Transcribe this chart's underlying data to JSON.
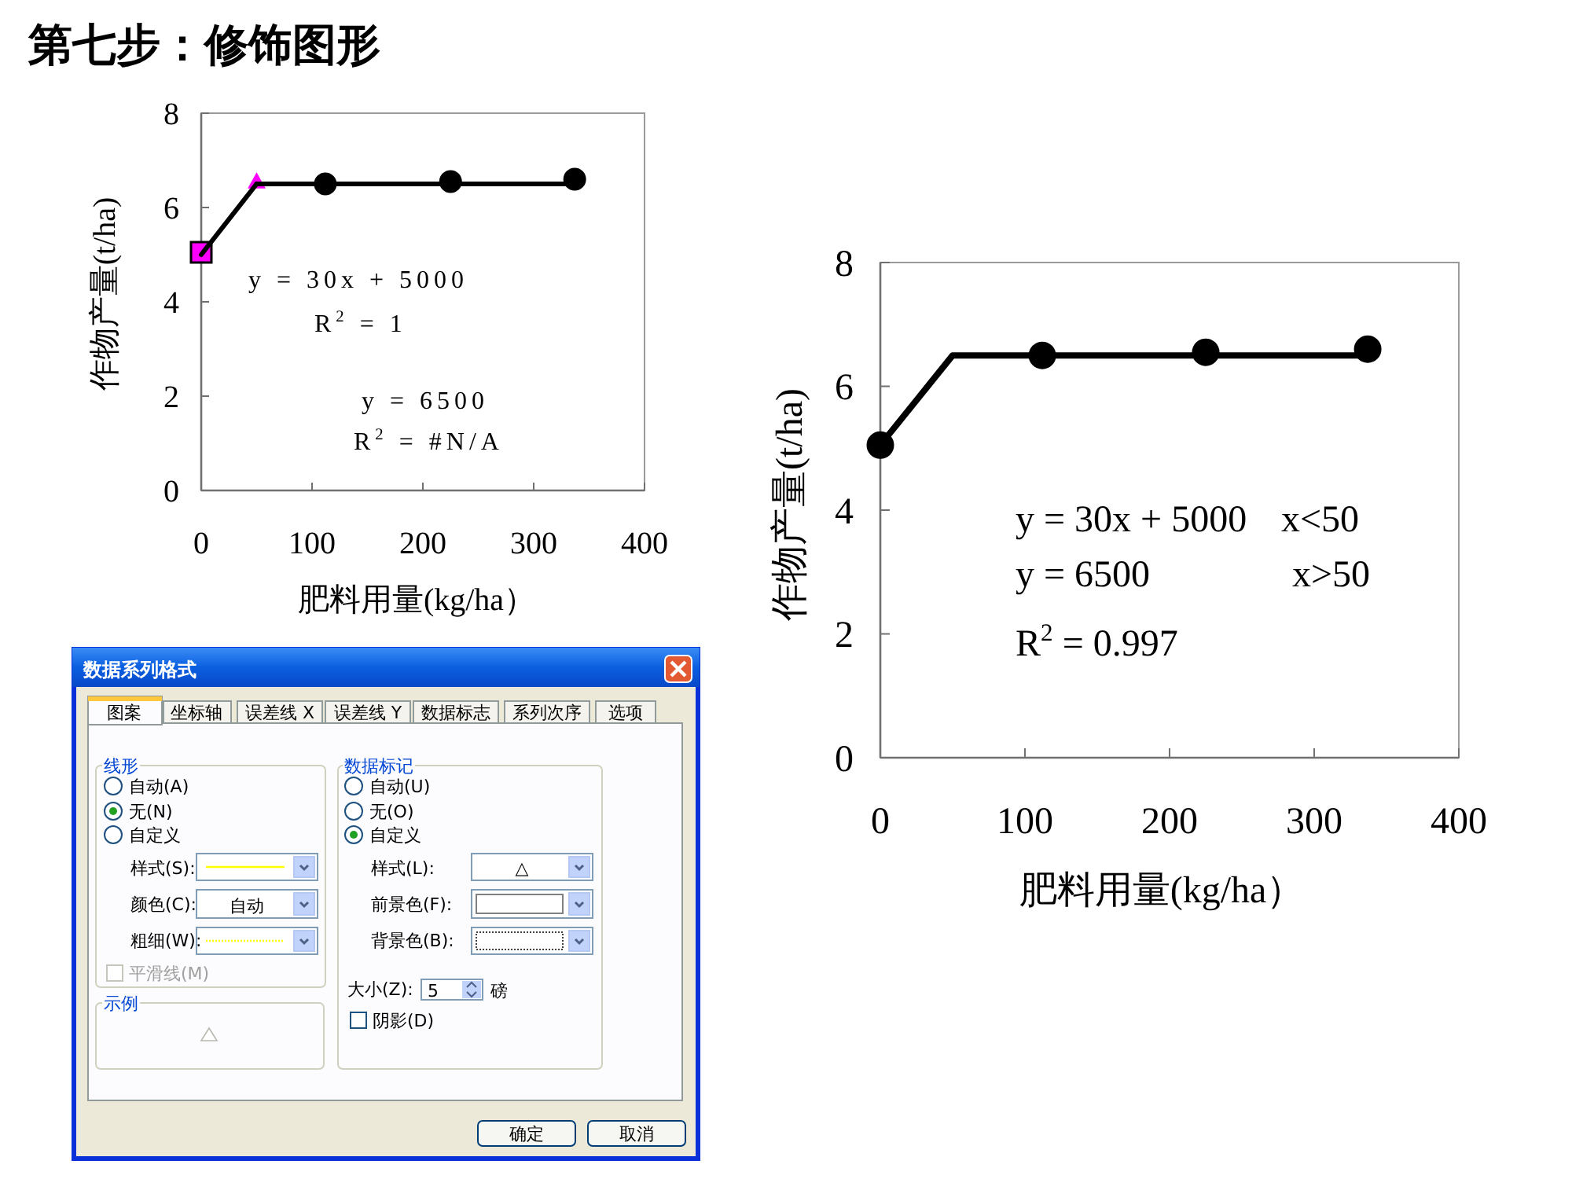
{
  "chart_data": [
    {
      "type": "line",
      "title": "第七步：修饰图形",
      "xlabel": "肥料用量(kg/ha）",
      "ylabel": "作物产量(t/ha)",
      "xlim": [
        0,
        400
      ],
      "ylim": [
        0,
        8
      ],
      "xticks": [
        0,
        100,
        200,
        300,
        400
      ],
      "yticks": [
        0,
        2,
        4,
        6,
        8
      ],
      "series": [
        {
          "type": "scatter",
          "color": "#ff00ff",
          "marker": "square",
          "x": [
            0
          ],
          "values": [
            5.05
          ]
        },
        {
          "type": "scatter",
          "color": "#ff00ff",
          "marker": "triangle",
          "x": [
            50
          ],
          "values": [
            6.55
          ]
        },
        {
          "type": "line",
          "color": "#000000",
          "marker": "none",
          "line_style": "solid",
          "x": [
            0,
            50
          ],
          "values": [
            5,
            6.5
          ]
        },
        {
          "type": "line",
          "color": "#000000",
          "marker": "none",
          "line_style": "solid",
          "x": [
            50,
            337
          ],
          "values": [
            6.5,
            6.5
          ]
        },
        {
          "type": "scatter",
          "color": "#000000",
          "marker": "circle",
          "x": [
            112,
            225,
            337
          ],
          "values": [
            6.5,
            6.55,
            6.6
          ]
        }
      ],
      "annotations": [
        "y = 30x + 5000",
        "R$^{2}$ = 1",
        "y = 6500",
        "R$^{2}$ = #N/A"
      ]
    },
    {
      "type": "line",
      "xlabel": "肥料用量(kg/ha）",
      "ylabel": "作物产量(t/ha)",
      "xlim": [
        0,
        400
      ],
      "ylim": [
        0,
        8
      ],
      "xticks": [
        0,
        100,
        200,
        300,
        400
      ],
      "yticks": [
        0,
        2,
        4,
        6,
        8
      ],
      "series": [
        {
          "type": "line",
          "color": "#000000",
          "marker": "none",
          "line_style": "solid",
          "x": [
            0,
            50,
            337
          ],
          "values": [
            5.05,
            6.5,
            6.5
          ]
        },
        {
          "type": "scatter",
          "color": "#000000",
          "marker": "circle",
          "x": [
            0,
            112,
            225,
            337
          ],
          "values": [
            5.05,
            6.5,
            6.55,
            6.6
          ]
        }
      ],
      "annotations": [
        "y = 30x + 5000",
        "x<50",
        "y = 6500",
        "x>50",
        "R$^{2}$ = 0.997"
      ]
    },
    {
      "type": "other",
      "title": "数据系列格式",
      "annotations": [
        "图案",
        "坐标轴",
        "误差线 X",
        "误差线 Y",
        "数据标志",
        "系列次序",
        "选项",
        "线形",
        "自动(A)",
        "无(N)",
        "自定义",
        "样式(S):",
        "颜色(C):",
        "自动",
        "粗细(W):",
        "平滑线(M)",
        "示例",
        "数据标记",
        "自动(U)",
        "无(O)",
        "自定义",
        "样式(L):",
        "△",
        "前景色(F):",
        "背景色(B):",
        "大小(Z):",
        "5",
        "磅",
        "阴影(D)",
        "确定",
        "取消"
      ]
    }
  ]
}
